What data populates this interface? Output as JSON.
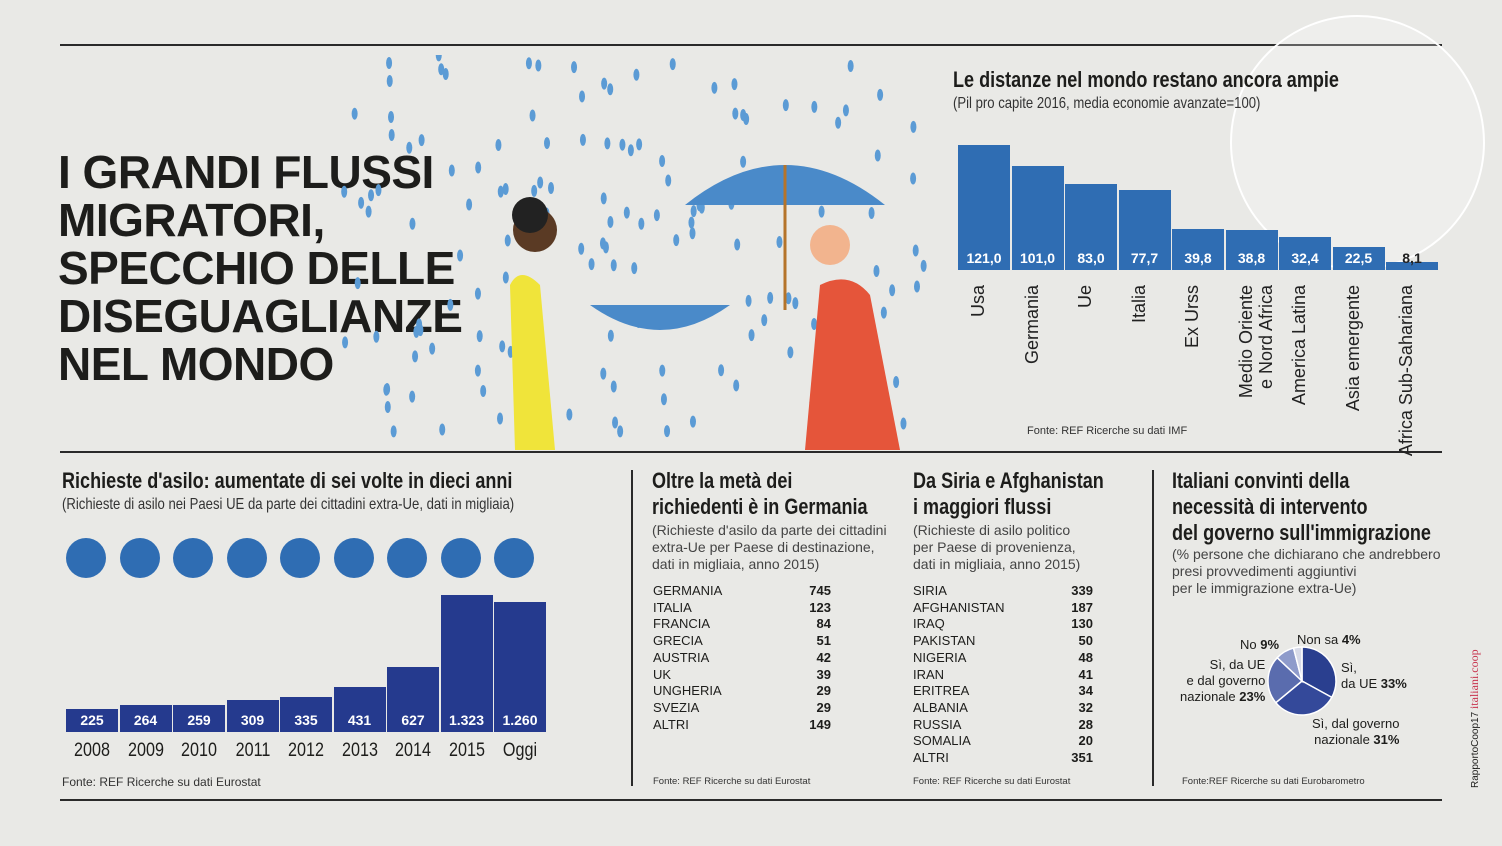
{
  "title": {
    "lines": [
      "I GRANDI FLUSSI",
      "MIGRATORI,",
      "SPECCHIO DELLE",
      "DISEGUAGLIANZE",
      "NEL MONDO"
    ]
  },
  "colors": {
    "bar": "#2f6db3",
    "asylum_bar": "#253a8e",
    "pie": [
      "#2a3f8f",
      "#34499a",
      "#5a6cae",
      "#8e9bcb",
      "#d8dbe8"
    ],
    "brand": "#c8334d"
  },
  "chart_data": [
    {
      "type": "bar",
      "title": "Le distanze nel mondo restano ancora ampie",
      "subtitle": "(Pil pro capite 2016,  media economie avanzate=100)",
      "categories": [
        "Usa",
        "Germania",
        "Ue",
        "Italia",
        "Ex Urss",
        "Medio Oriente e Nord Africa",
        "America Latina",
        "Asia emergente",
        "Africa Sub-Sahariana"
      ],
      "category_lines": [
        [
          "Usa"
        ],
        [
          "Germania"
        ],
        [
          "Ue"
        ],
        [
          "Italia"
        ],
        [
          "Ex Urss"
        ],
        [
          "Medio Oriente",
          "e Nord Africa"
        ],
        [
          "America Latina"
        ],
        [
          "Asia emergente"
        ],
        [
          "Africa Sub-Sahariana"
        ]
      ],
      "values": [
        121.0,
        101.0,
        83.0,
        77.7,
        39.8,
        38.8,
        32.4,
        22.5,
        8.1
      ],
      "labels": [
        "121,0",
        "101,0",
        "83,0",
        "77,7",
        "39,8",
        "38,8",
        "32,4",
        "22,5",
        "8,1"
      ],
      "ylim": [
        0,
        125
      ],
      "source": "Fonte: REF Ricerche su dati IMF"
    },
    {
      "type": "bar",
      "title": "Richieste d'asilo: aumentate di sei volte in dieci anni",
      "subtitle": "(Richieste di asilo nei Paesi UE da parte dei cittadini extra-Ue, dati in migliaia)",
      "categories": [
        "2008",
        "2009",
        "2010",
        "2011",
        "2012",
        "2013",
        "2014",
        "2015",
        "Oggi"
      ],
      "values": [
        225,
        264,
        259,
        309,
        335,
        431,
        627,
        1323,
        1260
      ],
      "labels": [
        "225",
        "264",
        "259",
        "309",
        "335",
        "431",
        "627",
        "1.323",
        "1.260"
      ],
      "ylim": [
        0,
        1323
      ],
      "source": "Fonte: REF Ricerche su dati Eurostat"
    },
    {
      "type": "table",
      "title": [
        "Oltre la metà dei",
        "richiedenti è in Germania"
      ],
      "subtitle": [
        "(Richieste d'asilo da parte dei cittadini",
        "extra-Ue  per Paese di destinazione,",
        "dati in migliaia, anno 2015)"
      ],
      "rows": [
        [
          "GERMANIA",
          "745"
        ],
        [
          "ITALIA",
          "123"
        ],
        [
          "FRANCIA",
          "84"
        ],
        [
          "GRECIA",
          "51"
        ],
        [
          "AUSTRIA",
          "42"
        ],
        [
          "UK",
          "39"
        ],
        [
          "UNGHERIA",
          "29"
        ],
        [
          "SVEZIA",
          "29"
        ],
        [
          "ALTRI",
          "149"
        ]
      ],
      "source": "Fonte: REF Ricerche su dati Eurostat"
    },
    {
      "type": "table",
      "title": [
        "Da Siria e Afghanistan",
        "i maggiori flussi"
      ],
      "subtitle": [
        "(Richieste di asilo politico",
        "per Paese di provenienza,",
        "dati in migliaia, anno 2015)"
      ],
      "rows": [
        [
          "SIRIA",
          "339"
        ],
        [
          "AFGHANISTAN",
          "187"
        ],
        [
          "IRAQ",
          "130"
        ],
        [
          "PAKISTAN",
          "50"
        ],
        [
          "NIGERIA",
          "48"
        ],
        [
          "IRAN",
          "41"
        ],
        [
          "ERITREA",
          "34"
        ],
        [
          "ALBANIA",
          "32"
        ],
        [
          "RUSSIA",
          "28"
        ],
        [
          "SOMALIA",
          "20"
        ],
        [
          "ALTRI",
          "351"
        ]
      ],
      "source": "Fonte: REF Ricerche su dati Eurostat"
    },
    {
      "type": "pie",
      "title": [
        "Italiani convinti della",
        "necessità di intervento",
        "del governo sull'immigrazione"
      ],
      "subtitle": [
        "(% persone che dichiarano che andrebbero",
        "presi provvedimenti aggiuntivi",
        "per le immigrazione extra-Ue)"
      ],
      "slices": [
        {
          "label": [
            "Sì,",
            "da UE"
          ],
          "value": 33,
          "pct": "33%"
        },
        {
          "label": [
            "Sì, dal governo",
            "nazionale"
          ],
          "value": 31,
          "pct": "31%"
        },
        {
          "label": [
            "Sì, da UE",
            "e dal governo",
            "nazionale"
          ],
          "value": 23,
          "pct": "23%"
        },
        {
          "label": [
            "No"
          ],
          "value": 9,
          "pct": "9%"
        },
        {
          "label": [
            "Non sa"
          ],
          "value": 4,
          "pct": "4%"
        }
      ],
      "source": "Fonte:REF Ricerche su dati Eurobarometro"
    }
  ],
  "credit": {
    "report": "RapportoCoop17",
    "brand": "italiani.coop"
  }
}
